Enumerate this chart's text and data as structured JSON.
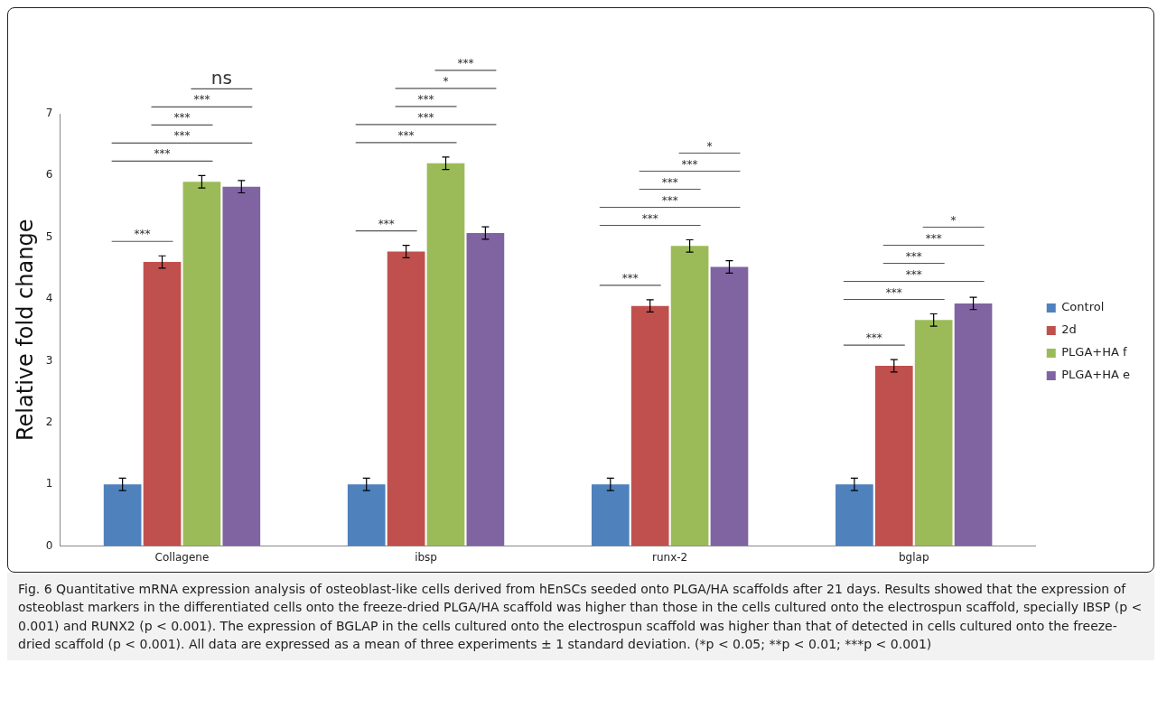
{
  "chart_data": {
    "type": "bar",
    "categories": [
      "Collagene",
      "ibsp",
      "runx-2",
      "bglap"
    ],
    "ylabel": "Relative fold change",
    "ylim": [
      0,
      7
    ],
    "yticks": [
      0,
      1,
      2,
      3,
      4,
      5,
      6,
      7
    ],
    "grid": false,
    "legend": "right",
    "series": [
      {
        "name": "Control",
        "color": "#4f81bd",
        "values": [
          1,
          1,
          1,
          1
        ],
        "errors": [
          0.1,
          0.1,
          0.1,
          0.1
        ]
      },
      {
        "name": "2d",
        "color": "#c0504d",
        "values": [
          4.6,
          4.77,
          3.89,
          2.92
        ],
        "errors": [
          0.1,
          0.1,
          0.1,
          0.1
        ]
      },
      {
        "name": "PLGA+HA f",
        "color": "#9bbb59",
        "values": [
          5.9,
          6.2,
          4.86,
          3.66
        ],
        "errors": [
          0.1,
          0.1,
          0.1,
          0.1
        ]
      },
      {
        "name": "PLGA+HA e",
        "color": "#8064a2",
        "values": [
          5.82,
          5.07,
          4.52,
          3.93
        ],
        "errors": [
          0.1,
          0.1,
          0.1,
          0.1
        ]
      }
    ],
    "annotations": [
      "***",
      "***",
      "***",
      "***",
      "***",
      "ns",
      "***",
      "***",
      "***",
      "***",
      "*",
      "***",
      "***",
      "***",
      "***",
      "***",
      "***",
      "*",
      "***",
      "***",
      "***",
      "***",
      "***",
      "*",
      "Fig. 6 Quantitative mRNA expression analysis of osteoblast-like cells derived from hEnSCs seeded onto PLGA/HA scaffolds after 21 days. Results showed that the expression of osteoblast markers in the differentiated cells onto the freeze-dried PLGA/HA scaffold was higher than those in the cells cultured onto the electrospun scaffold, specially IBSP (p < 0.001) and RUNX2 (p < 0.001). The expression of BGLAP in the cells cultured onto the electrospun scaffold was higher than that of detected in cells cultured onto the freeze-dried scaffold (p < 0.001). All data are expressed as a mean of three experiments ± 1 standard deviation. (*p < 0.05; **p < 0.01; ***p < 0.001)"
    ]
  }
}
